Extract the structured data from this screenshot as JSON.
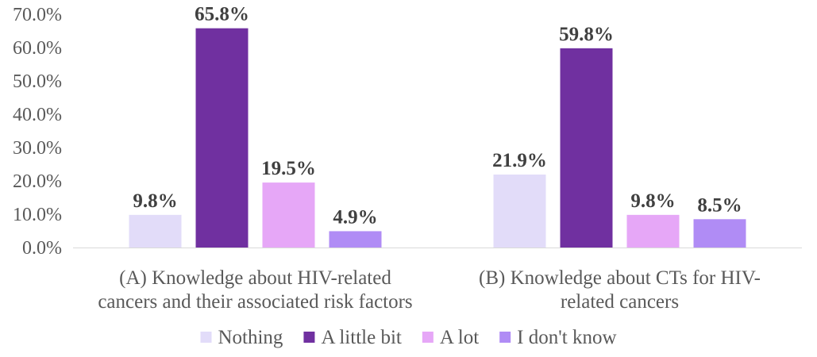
{
  "chart_data": {
    "type": "bar",
    "title": "",
    "xlabel": "",
    "ylabel": "",
    "ylim": [
      0,
      70
    ],
    "ytick_step": 10,
    "yticks": [
      "0.0%",
      "10.0%",
      "20.0%",
      "30.0%",
      "40.0%",
      "50.0%",
      "60.0%",
      "70.0%"
    ],
    "grid": false,
    "legend": "bottom",
    "categories": [
      [
        "(A) Knowledge about HIV-related",
        "cancers and their associated risk factors"
      ],
      [
        "(B) Knowledge about CTs for HIV-",
        "related cancers"
      ]
    ],
    "series": [
      {
        "name": "Nothing",
        "color": "#e2dcf9",
        "values": [
          9.8,
          21.9
        ],
        "labels": [
          "9.8%",
          "21.9%"
        ]
      },
      {
        "name": "A little bit",
        "color": "#7030a0",
        "values": [
          65.8,
          59.8
        ],
        "labels": [
          "65.8%",
          "59.8%"
        ]
      },
      {
        "name": "A lot",
        "color": "#e6a7f7",
        "values": [
          19.5,
          9.8
        ],
        "labels": [
          "19.5%",
          "9.8%"
        ]
      },
      {
        "name": "I don't know",
        "color": "#b08cf5",
        "values": [
          4.9,
          8.5
        ],
        "labels": [
          "4.9%",
          "8.5%"
        ]
      }
    ]
  }
}
